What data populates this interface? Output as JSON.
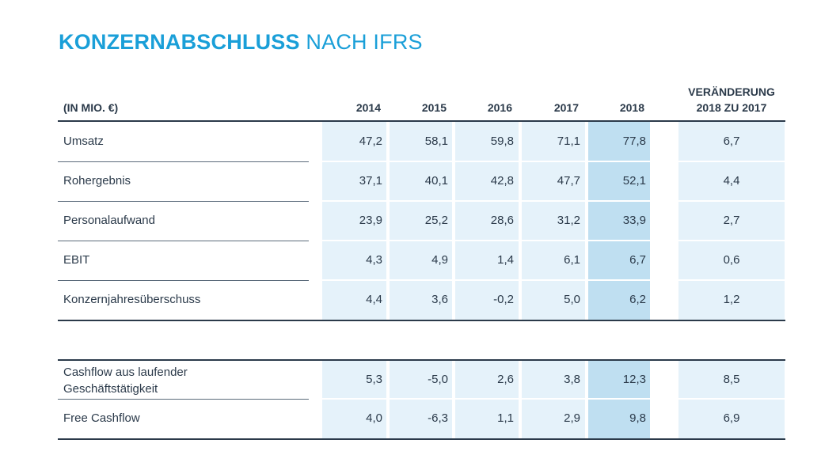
{
  "title": {
    "bold": "KONZERNABSCHLUSS",
    "light": "NACH IFRS"
  },
  "header": {
    "unit": "(IN MIO. €)",
    "years": [
      "2014",
      "2015",
      "2016",
      "2017",
      "2018"
    ],
    "change_line1": "VERÄNDERUNG",
    "change_line2": "2018 ZU 2017"
  },
  "section1": [
    {
      "label": "Umsatz",
      "values": [
        "47,2",
        "58,1",
        "59,8",
        "71,1",
        "77,8"
      ],
      "change": "6,7"
    },
    {
      "label": "Rohergebnis",
      "values": [
        "37,1",
        "40,1",
        "42,8",
        "47,7",
        "52,1"
      ],
      "change": "4,4"
    },
    {
      "label": "Personalaufwand",
      "values": [
        "23,9",
        "25,2",
        "28,6",
        "31,2",
        "33,9"
      ],
      "change": "2,7"
    },
    {
      "label": "EBIT",
      "values": [
        "4,3",
        "4,9",
        "1,4",
        "6,1",
        "6,7"
      ],
      "change": "0,6"
    },
    {
      "label": "Konzernjahresüberschuss",
      "values": [
        "4,4",
        "3,6",
        "-0,2",
        "5,0",
        "6,2"
      ],
      "change": "1,2"
    }
  ],
  "section2": [
    {
      "label_line1": "Cashflow aus laufender",
      "label_line2": "Geschäftstätigkeit",
      "values": [
        "5,3",
        "-5,0",
        "2,6",
        "3,8",
        "12,3"
      ],
      "change": "8,5"
    },
    {
      "label_line1": "Free Cashflow",
      "label_line2": "",
      "values": [
        "4,0",
        "-6,3",
        "1,1",
        "2,9",
        "9,8"
      ],
      "change": "6,9"
    }
  ]
}
